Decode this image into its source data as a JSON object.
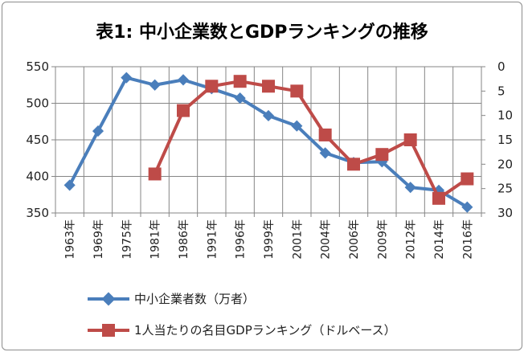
{
  "chart_data": {
    "type": "line",
    "title": "表1: 中小企業数とGDPランキングの推移",
    "categories": [
      "1963年",
      "1969年",
      "1975年",
      "1981年",
      "1986年",
      "1991年",
      "1996年",
      "1999年",
      "2001年",
      "2004年",
      "2006年",
      "2009年",
      "2012年",
      "2014年",
      "2016年"
    ],
    "y_left": {
      "ylim": [
        350,
        550
      ],
      "ticks": [
        350,
        400,
        450,
        500,
        550
      ]
    },
    "y_right": {
      "ylim": [
        0,
        30
      ],
      "ticks": [
        0,
        5,
        10,
        15,
        20,
        25,
        30
      ],
      "inverted": true
    },
    "grid": true,
    "legend_position": "bottom",
    "series": [
      {
        "name": "中小企業者数（万者）",
        "axis": "left",
        "marker": "diamond",
        "color": "#4a7ebb",
        "values": [
          388,
          462,
          535,
          525,
          532,
          520,
          507,
          483,
          469,
          432,
          419,
          420,
          385,
          381,
          358
        ]
      },
      {
        "name": "1人当たりの名目GDPランキング（ドルベース）",
        "axis": "right",
        "marker": "square",
        "color": "#be4b48",
        "values": [
          null,
          null,
          null,
          22,
          9,
          4,
          3,
          4,
          5,
          14,
          20,
          18,
          15,
          27,
          23
        ]
      }
    ]
  }
}
